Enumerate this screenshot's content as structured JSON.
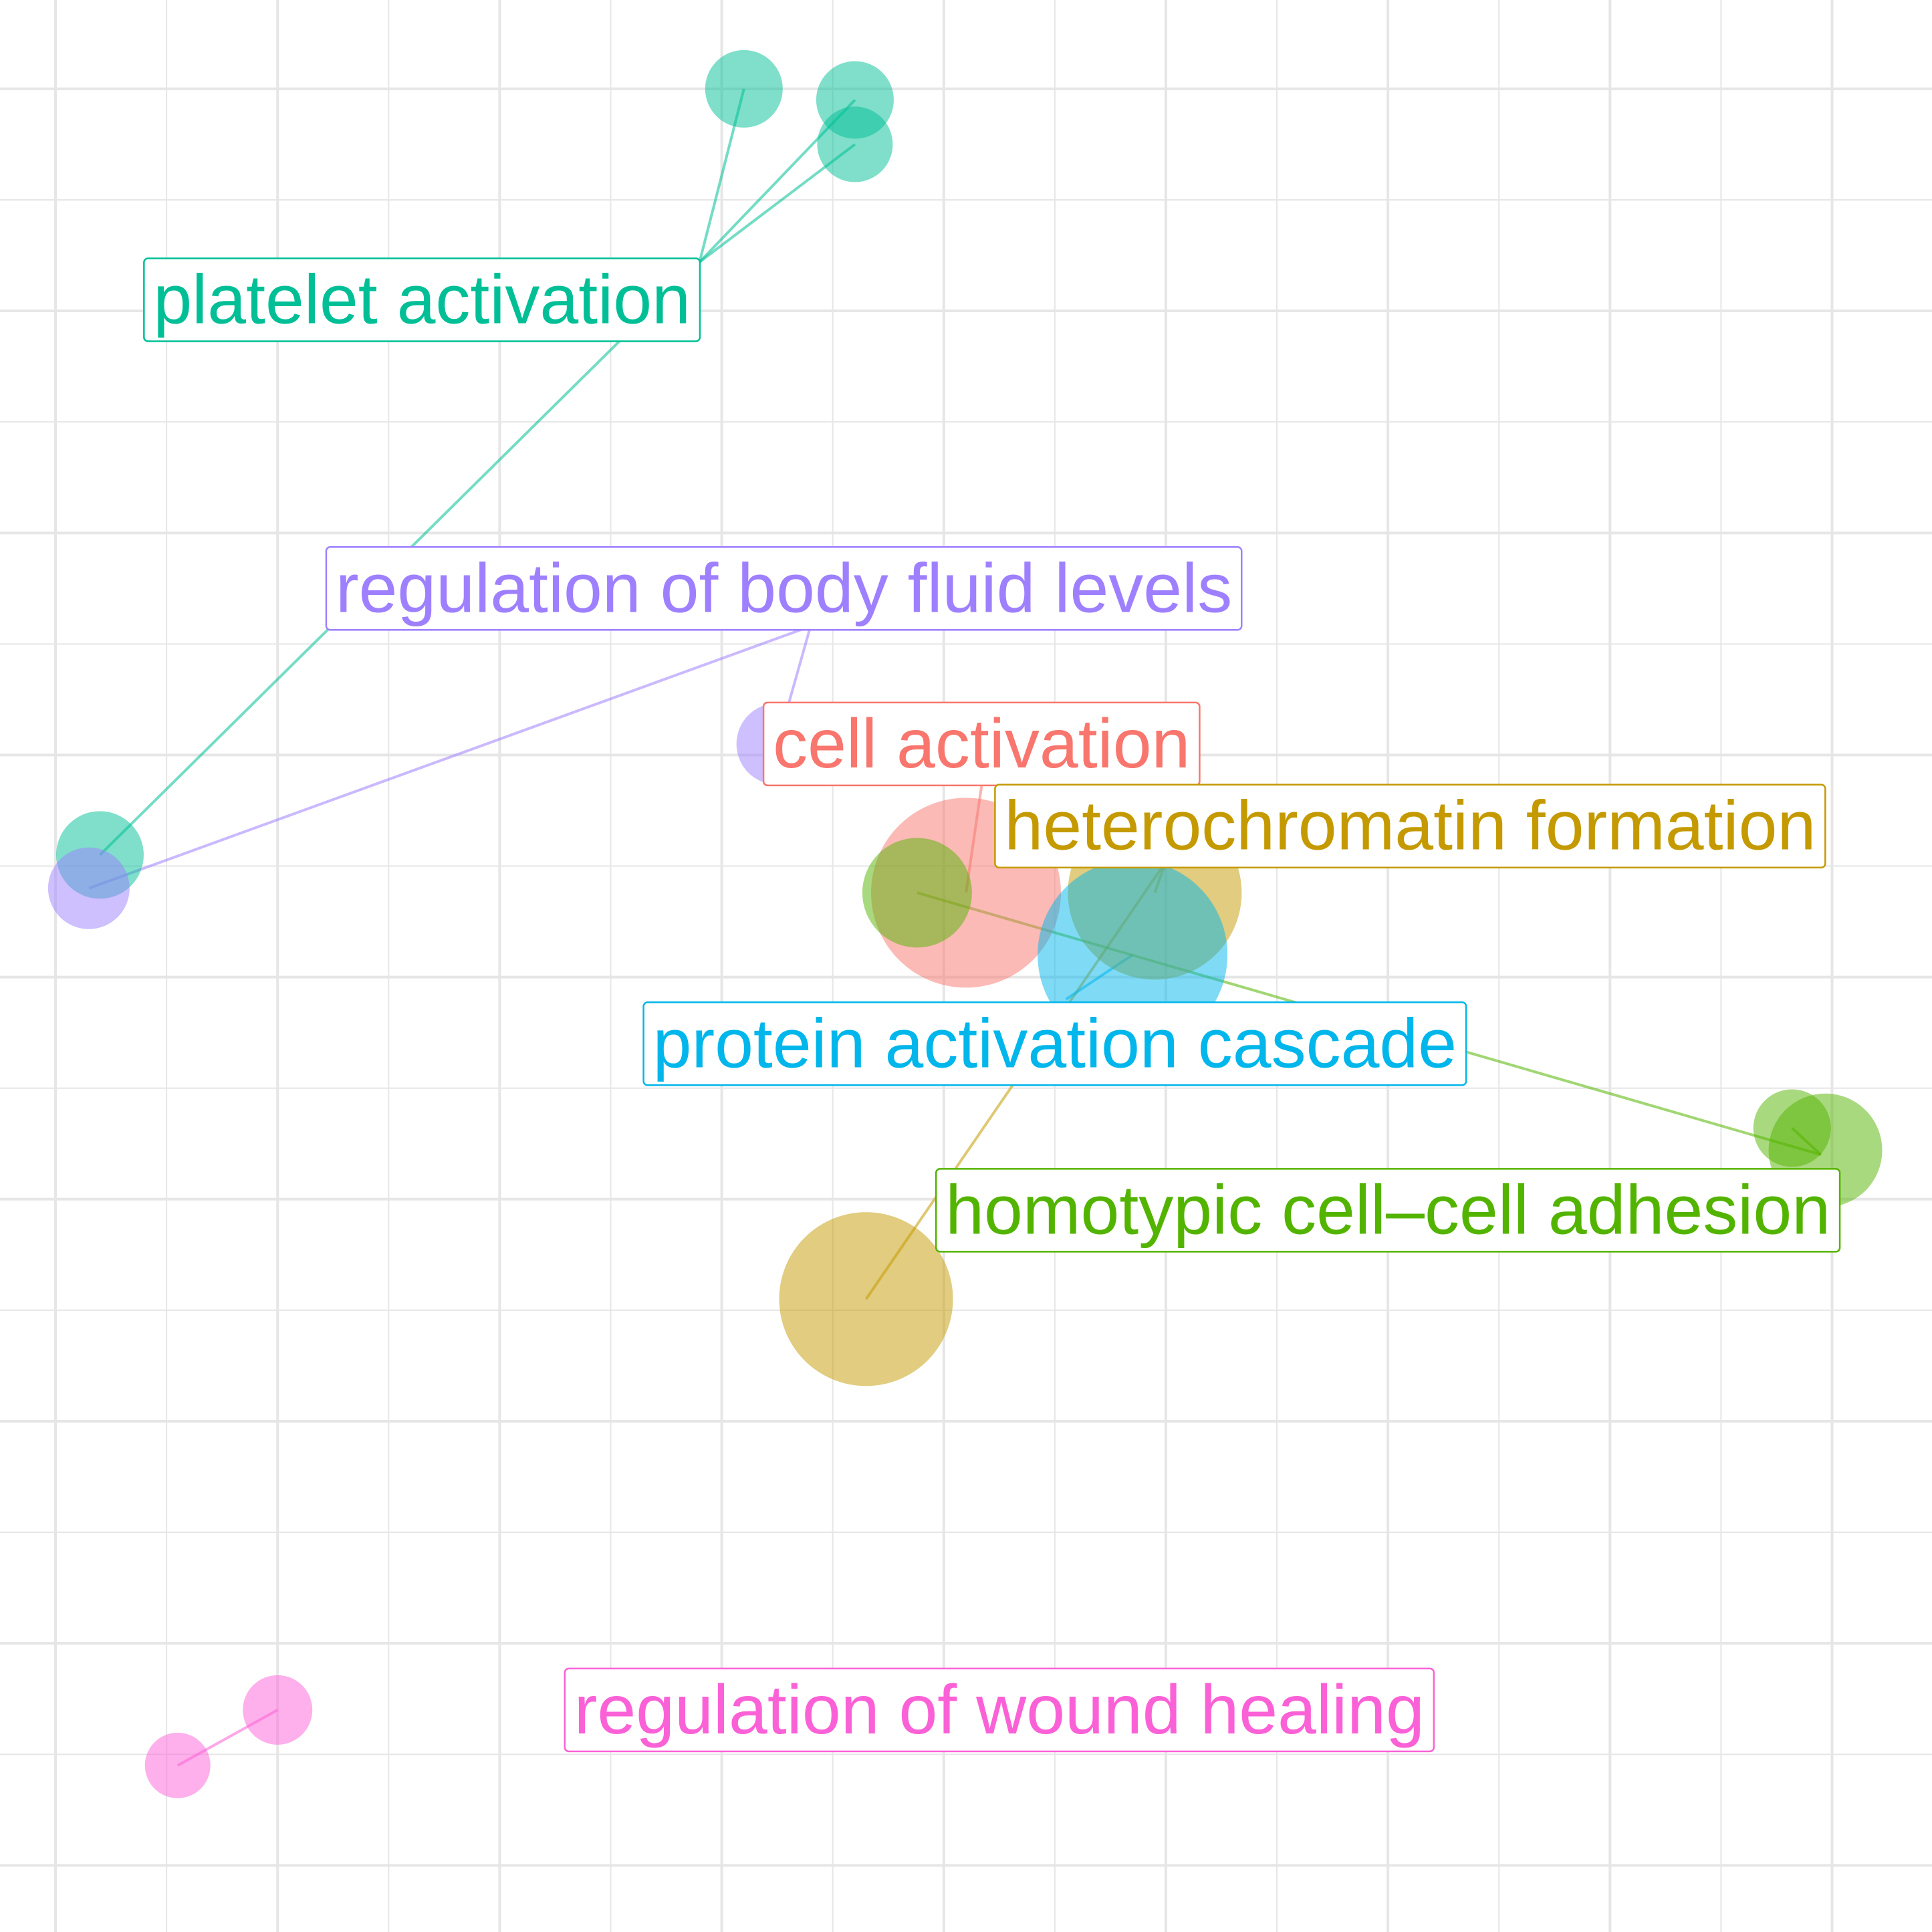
{
  "chart_data": {
    "type": "scatter",
    "title": "",
    "xlabel": "",
    "ylabel": "",
    "xlim": [
      -4.25,
      4.45
    ],
    "ylim": [
      -4.3,
      4.4
    ],
    "grid": true,
    "legend": "none",
    "clusters": [
      {
        "label": "platelet activation",
        "color": "#00BF96",
        "label_pos": [
          -2.35,
          3.05
        ],
        "anchor": [
          -1.1,
          3.22
        ],
        "points": [
          {
            "x": -0.9,
            "y": 4.0,
            "size": 0.06
          },
          {
            "x": -0.4,
            "y": 3.95,
            "size": 0.06
          },
          {
            "x": -0.4,
            "y": 3.75,
            "size": 0.055
          },
          {
            "x": -3.8,
            "y": 0.55,
            "size": 0.085
          }
        ]
      },
      {
        "label": "regulation of body fluid levels",
        "color": "#9E80FF",
        "label_pos": [
          -0.72,
          1.75
        ],
        "anchor": [
          -0.6,
          1.58
        ],
        "points": [
          {
            "x": -0.75,
            "y": 1.05,
            "size": 0.07
          },
          {
            "x": -3.85,
            "y": 0.4,
            "size": 0.07
          }
        ]
      },
      {
        "label": "cell activation",
        "color": "#F8766D",
        "label_pos": [
          0.17,
          1.05
        ],
        "anchor": [
          0.17,
          0.86
        ],
        "points": [
          {
            "x": 0.1,
            "y": 0.38,
            "size": 0.34
          }
        ]
      },
      {
        "label": "heterochromatin formation",
        "color": "#C49A00",
        "label_pos": [
          2.1,
          0.68
        ],
        "anchor": [
          1.0,
          0.52
        ],
        "points": [
          {
            "x": 0.95,
            "y": 0.38,
            "size": 0.3
          },
          {
            "x": -0.35,
            "y": -1.45,
            "size": 0.3
          }
        ]
      },
      {
        "label": "protein activation cascade",
        "color": "#00B6EB",
        "label_pos": [
          0.5,
          -0.3
        ],
        "anchor": [
          0.55,
          -0.1
        ],
        "points": [
          {
            "x": 0.85,
            "y": 0.1,
            "size": 0.34
          }
        ]
      },
      {
        "label": "homotypic cell–cell adhesion",
        "color": "#53B400",
        "label_pos": [
          2.0,
          -1.05
        ],
        "anchor": [
          3.95,
          -0.8
        ],
        "points": [
          {
            "x": 3.82,
            "y": -0.68,
            "size": 0.06
          },
          {
            "x": 3.97,
            "y": -0.78,
            "size": 0.15
          },
          {
            "x": -0.12,
            "y": 0.38,
            "size": 0.14
          }
        ]
      },
      {
        "label": "regulation of wound healing",
        "color": "#FB61D7",
        "label_pos": [
          0.25,
          -3.3
        ],
        "anchor": [
          -3.0,
          -3.3
        ],
        "points": [
          {
            "x": -3.0,
            "y": -3.3,
            "size": 0.04
          },
          {
            "x": -3.45,
            "y": -3.55,
            "size": 0.03
          }
        ]
      }
    ]
  }
}
